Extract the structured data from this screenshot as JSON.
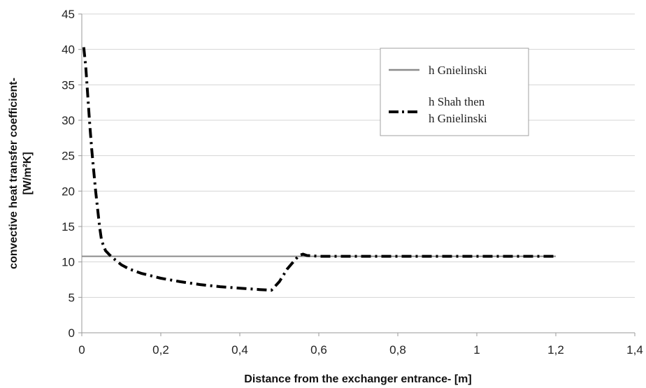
{
  "chart_data": {
    "type": "line",
    "title": "",
    "xlabel": "Distance from the exchanger entrance- [m]",
    "ylabel_lines": [
      "convective heat transfer coefficient-",
      "[W/m²K]"
    ],
    "xlim": [
      0,
      1.4
    ],
    "ylim": [
      0,
      45
    ],
    "x_ticks": [
      0,
      0.2,
      0.4,
      0.6,
      0.8,
      1,
      1.2,
      1.4
    ],
    "x_tick_labels": [
      "0",
      "0,2",
      "0,4",
      "0,6",
      "0,8",
      "1",
      "1,2",
      "1,4"
    ],
    "y_ticks": [
      0,
      5,
      10,
      15,
      20,
      25,
      30,
      35,
      40,
      45
    ],
    "y_tick_labels": [
      "0",
      "5",
      "10",
      "15",
      "20",
      "25",
      "30",
      "35",
      "40",
      "45"
    ],
    "grid": "horizontal",
    "legend_position": "upper-right",
    "series": [
      {
        "name": "h Gnielinski",
        "name_lines": [
          "h Gnielinski"
        ],
        "style": "solid",
        "color": "#8c8c8c",
        "x": [
          0,
          1.2
        ],
        "y": [
          10.8,
          10.8
        ]
      },
      {
        "name": "h Shah then h Gnielinski",
        "name_lines": [
          "h Shah then",
          "h Gnielinski"
        ],
        "style": "dash-dot",
        "color": "#000000",
        "x": [
          0.005,
          0.01,
          0.015,
          0.02,
          0.025,
          0.03,
          0.035,
          0.04,
          0.045,
          0.05,
          0.06,
          0.07,
          0.08,
          0.1,
          0.12,
          0.15,
          0.2,
          0.25,
          0.3,
          0.35,
          0.4,
          0.45,
          0.48,
          0.5,
          0.52,
          0.54,
          0.55,
          0.56,
          0.57,
          0.6,
          0.7,
          0.8,
          0.9,
          1.0,
          1.1,
          1.2
        ],
        "y": [
          40.3,
          37.5,
          33.5,
          29.5,
          26,
          23,
          20,
          17.5,
          15,
          13,
          11.6,
          11,
          10.5,
          9.6,
          9,
          8.4,
          7.7,
          7.2,
          6.8,
          6.5,
          6.3,
          6.1,
          6.0,
          7.2,
          9.0,
          10.3,
          10.9,
          11.1,
          10.9,
          10.8,
          10.8,
          10.8,
          10.8,
          10.8,
          10.8,
          10.8
        ]
      }
    ]
  }
}
